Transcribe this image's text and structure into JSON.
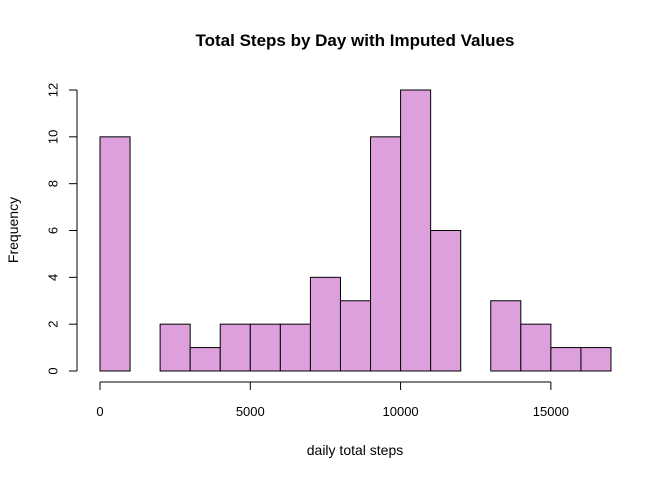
{
  "chart_data": {
    "type": "bar",
    "title": "Total Steps by Day with Imputed Values",
    "xlabel": "daily total steps",
    "ylabel": "Frequency",
    "bin_edges": [
      0,
      1000,
      2000,
      3000,
      4000,
      5000,
      6000,
      7000,
      8000,
      9000,
      10000,
      11000,
      12000,
      13000,
      14000,
      15000,
      16000,
      17000
    ],
    "values": [
      10,
      0,
      2,
      1,
      2,
      2,
      2,
      4,
      3,
      10,
      12,
      6,
      0,
      3,
      2,
      1,
      1
    ],
    "xlim": [
      0,
      17000
    ],
    "ylim": [
      0,
      12
    ],
    "x_ticks": [
      0,
      5000,
      10000,
      15000
    ],
    "x_tick_labels": [
      "0",
      "5000",
      "10000",
      "15000"
    ],
    "y_ticks": [
      0,
      2,
      4,
      6,
      8,
      10,
      12
    ],
    "y_tick_labels": [
      "0",
      "2",
      "4",
      "6",
      "8",
      "10",
      "12"
    ],
    "bar_color": "#DDA0DD",
    "grid": false,
    "legend": "none"
  }
}
